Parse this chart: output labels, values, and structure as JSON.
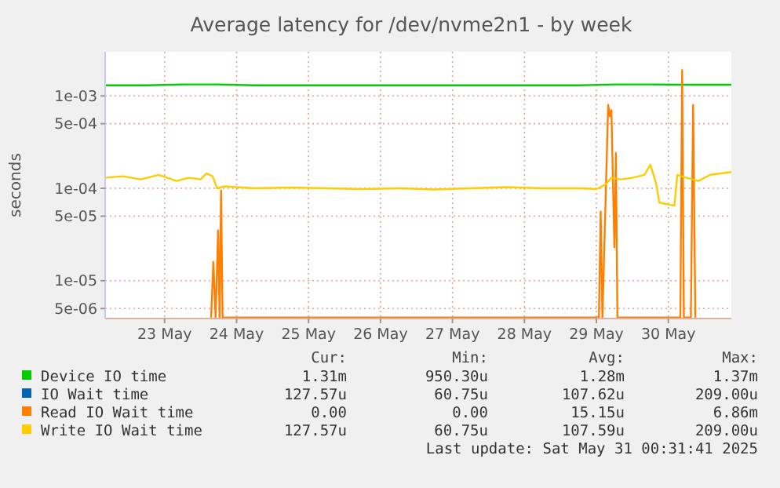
{
  "chart_data": {
    "type": "line",
    "title": "Average latency for /dev/nvme2n1 - by week",
    "ylabel": "seconds",
    "log": "y",
    "grid": true,
    "legend": "bottom",
    "xlim": [
      "2025-05-22T04:10",
      "2025-05-30T21:00"
    ],
    "xticks": [
      {
        "value": "2025-05-23",
        "label": "23 May"
      },
      {
        "value": "2025-05-24",
        "label": "24 May"
      },
      {
        "value": "2025-05-25",
        "label": "25 May"
      },
      {
        "value": "2025-05-26",
        "label": "26 May"
      },
      {
        "value": "2025-05-27",
        "label": "27 May"
      },
      {
        "value": "2025-05-28",
        "label": "28 May"
      },
      {
        "value": "2025-05-29",
        "label": "29 May"
      },
      {
        "value": "2025-05-30",
        "label": "30 May"
      }
    ],
    "ylim": [
      3.9e-06,
      0.003
    ],
    "yticks": [
      {
        "value": 5e-06,
        "label": "5e-06"
      },
      {
        "value": 1e-05,
        "label": "1e-05"
      },
      {
        "value": 5e-05,
        "label": "5e-05"
      },
      {
        "value": 0.0001,
        "label": "1e-04"
      },
      {
        "value": 0.0005,
        "label": "5e-04"
      },
      {
        "value": 0.001,
        "label": "1e-03"
      }
    ],
    "series": [
      {
        "name": "Device IO time",
        "color": "#00cc00",
        "x": [
          "2025-05-22T04:10",
          "2025-05-22T18:00",
          "2025-05-23T06:00",
          "2025-05-23T18:00",
          "2025-05-24T06:00",
          "2025-05-24T18:00",
          "2025-05-25T06:00",
          "2025-05-25T18:00",
          "2025-05-26T06:00",
          "2025-05-26T18:00",
          "2025-05-27T06:00",
          "2025-05-27T18:00",
          "2025-05-28T06:00",
          "2025-05-28T18:00",
          "2025-05-29T06:00",
          "2025-05-29T18:00",
          "2025-05-30T06:00",
          "2025-05-30T21:00"
        ],
        "values": [
          0.0013,
          0.0013,
          0.00133,
          0.00133,
          0.0013,
          0.0013,
          0.0013,
          0.0013,
          0.0013,
          0.0013,
          0.0013,
          0.0013,
          0.0013,
          0.0013,
          0.00133,
          0.00133,
          0.00132,
          0.00132
        ]
      },
      {
        "name": "IO Wait time",
        "color": "#0066b3"
      },
      {
        "name": "Read IO Wait time",
        "color": "#ff8000",
        "x": [
          "2025-05-23T15:30",
          "2025-05-23T16:15",
          "2025-05-23T17:00",
          "2025-05-23T17:50",
          "2025-05-23T18:20",
          "2025-05-23T18:50",
          "2025-05-23T19:20",
          "2025-05-29T00:50",
          "2025-05-29T01:25",
          "2025-05-29T02:00",
          "2025-05-29T03:55",
          "2025-05-29T04:30",
          "2025-05-29T05:00",
          "2025-05-29T06:00",
          "2025-05-29T06:30",
          "2025-05-29T07:00",
          "2025-05-30T04:00",
          "2025-05-30T04:35",
          "2025-05-30T05:10",
          "2025-05-30T06:00",
          "2025-05-30T07:30",
          "2025-05-30T08:15",
          "2025-05-30T09:00"
        ],
        "values": [
          4e-06,
          1.6e-05,
          4e-06,
          3.5e-05,
          4e-06,
          9.5e-05,
          4e-06,
          4e-06,
          5.6e-05,
          4e-06,
          0.0008,
          0.0006,
          0.0007,
          2.3e-05,
          0.00024,
          4e-06,
          4e-06,
          0.0019,
          4e-06,
          4e-06,
          4e-06,
          0.0008,
          4e-06
        ]
      },
      {
        "name": "Write IO Wait time",
        "color": "#ffcc00",
        "x": [
          "2025-05-22T04:10",
          "2025-05-22T10:00",
          "2025-05-22T16:00",
          "2025-05-22T22:00",
          "2025-05-23T04:00",
          "2025-05-23T08:00",
          "2025-05-23T12:00",
          "2025-05-23T14:00",
          "2025-05-23T16:00",
          "2025-05-23T17:30",
          "2025-05-23T20:00",
          "2025-05-24T06:00",
          "2025-05-24T18:00",
          "2025-05-25T06:00",
          "2025-05-25T18:00",
          "2025-05-26T06:00",
          "2025-05-26T18:00",
          "2025-05-27T06:00",
          "2025-05-27T18:00",
          "2025-05-28T06:00",
          "2025-05-28T18:00",
          "2025-05-29T00:00",
          "2025-05-29T03:00",
          "2025-05-29T05:00",
          "2025-05-29T08:00",
          "2025-05-29T12:00",
          "2025-05-29T16:00",
          "2025-05-29T18:00",
          "2025-05-29T20:00",
          "2025-05-29T21:00",
          "2025-05-30T02:00",
          "2025-05-30T03:00",
          "2025-05-30T06:00",
          "2025-05-30T10:00",
          "2025-05-30T14:00",
          "2025-05-30T21:00"
        ],
        "values": [
          0.00013,
          0.000135,
          0.000125,
          0.00014,
          0.00012,
          0.00013,
          0.000125,
          0.000145,
          0.000135,
          0.0001,
          0.000105,
          0.0001,
          0.000102,
          0.0001,
          9.8e-05,
          0.0001,
          9.7e-05,
          0.0001,
          0.000103,
          0.0001,
          0.0001,
          9.8e-05,
          0.00011,
          0.00013,
          0.000125,
          0.00013,
          0.00014,
          0.00018,
          0.00011,
          7e-05,
          6.5e-05,
          0.00014,
          0.00013,
          0.00012,
          0.00014,
          0.00015
        ]
      }
    ],
    "annotations": [
      "Cur:",
      "Min:",
      "Avg:",
      "Max:",
      "1.31m",
      "950.30u",
      "1.28m",
      "1.37m",
      "127.57u",
      "60.75u",
      "107.62u",
      "209.00u",
      "0.00",
      "0.00",
      "15.15u",
      "6.86m",
      "127.57u",
      "60.75u",
      "107.59u",
      "209.00u",
      "Last update: Sat May 31 00:31:41 2025"
    ]
  }
}
